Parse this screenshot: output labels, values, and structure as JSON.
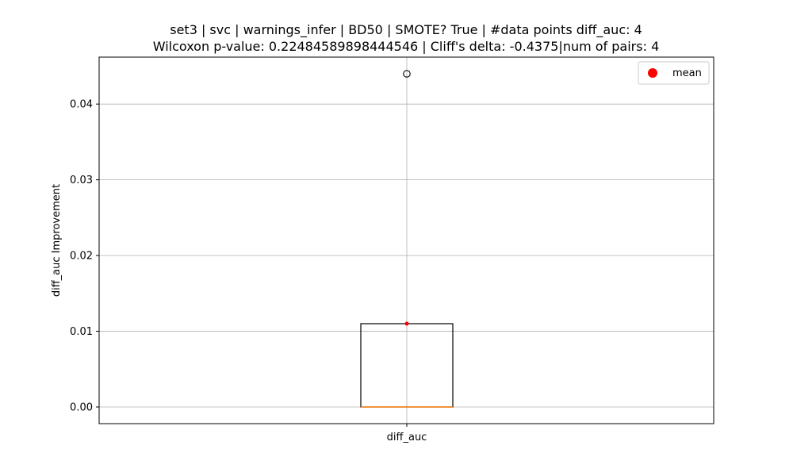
{
  "chart_data": {
    "type": "box",
    "title_line1": "set3 | svc | warnings_infer | BD50 | SMOTE? True | #data points diff_auc: 4",
    "title_line2": "Wilcoxon p-value: 0.22484589898444546 | Cliff's delta: -0.4375|num of pairs: 4",
    "ylabel": "diff_auc Improvement",
    "categories": [
      "diff_auc"
    ],
    "ylim": [
      -0.0022,
      0.0462
    ],
    "yticks": [
      0.0,
      0.01,
      0.02,
      0.03,
      0.04
    ],
    "ytick_labels": [
      "0.00",
      "0.01",
      "0.02",
      "0.03",
      "0.04"
    ],
    "grid": true,
    "box": {
      "whisker_low": 0.0,
      "q1": 0.0,
      "median": 0.0,
      "q3": 0.011,
      "whisker_high": 0.011,
      "mean": 0.011,
      "outliers": [
        0.044
      ]
    },
    "legend": {
      "position": "top-right",
      "entries": [
        {
          "label": "mean",
          "color": "#ff0000"
        }
      ]
    },
    "colors": {
      "box": "#000000",
      "median": "#ff7f0e",
      "mean": "#ff0000",
      "grid": "#b0b0b0"
    }
  }
}
